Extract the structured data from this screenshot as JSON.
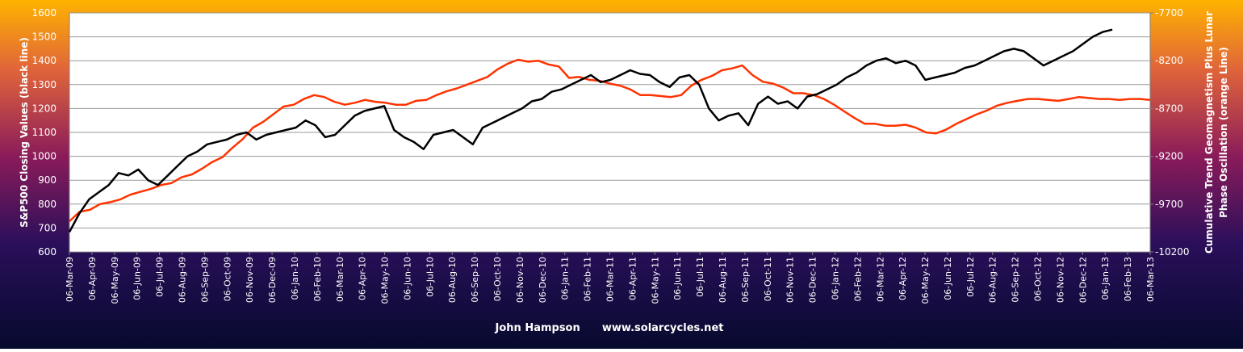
{
  "chart_data": {
    "type": "line",
    "x_tick_labels": [
      "06-Mar-09",
      "06-Apr-09",
      "06-May-09",
      "06-Jun-09",
      "06-Jul-09",
      "06-Aug-09",
      "06-Sep-09",
      "06-Oct-09",
      "06-Nov-09",
      "06-Dec-09",
      "06-Jan-10",
      "06-Feb-10",
      "06-Mar-10",
      "06-Apr-10",
      "06-May-10",
      "06-Jun-10",
      "06-Jul-10",
      "06-Aug-10",
      "06-Sep-10",
      "06-Oct-10",
      "06-Nov-10",
      "06-Dec-10",
      "06-Jan-11",
      "06-Feb-11",
      "06-Mar-11",
      "06-Apr-11",
      "06-May-11",
      "06-Jun-11",
      "06-Jul-11",
      "06-Aug-11",
      "06-Sep-11",
      "06-Oct-11",
      "06-Nov-11",
      "06-Dec-11",
      "06-Jan-12",
      "06-Feb-12",
      "06-Mar-12",
      "06-Apr-12",
      "06-May-12",
      "06-Jun-12",
      "06-Jul-12",
      "06-Aug-12",
      "06-Sep-12",
      "06-Oct-12",
      "06-Nov-12",
      "06-Dec-12",
      "06-Jan-13",
      "06-Feb-13",
      "06-Mar-13"
    ],
    "y_left": {
      "label": "S&P500 Closing  Values (black line)",
      "ylim": [
        600,
        1600
      ],
      "ticks": [
        "600",
        "700",
        "800",
        "900",
        "1000",
        "1100",
        "1200",
        "1300",
        "1400",
        "1500",
        "1600"
      ]
    },
    "y_right": {
      "label_line1": "Cumulative Trend Geomagnetism Plus Lunar",
      "label_line2": "Phase Oscillation  (orange Line)",
      "ylim": [
        -10200,
        -7700
      ],
      "ticks": [
        "-10200",
        "-9700",
        "-9200",
        "-8700",
        "-8200",
        "-7700"
      ]
    },
    "series": [
      {
        "color": "#000000",
        "axis": "left",
        "values": [
          683,
          760,
          820,
          850,
          880,
          930,
          920,
          945,
          900,
          880,
          920,
          960,
          1000,
          1020,
          1050,
          1060,
          1070,
          1090,
          1100,
          1070,
          1090,
          1100,
          1110,
          1120,
          1150,
          1130,
          1080,
          1090,
          1130,
          1170,
          1190,
          1200,
          1210,
          1110,
          1080,
          1060,
          1030,
          1090,
          1100,
          1110,
          1080,
          1050,
          1120,
          1140,
          1160,
          1180,
          1200,
          1230,
          1240,
          1270,
          1280,
          1300,
          1320,
          1340,
          1310,
          1320,
          1340,
          1360,
          1345,
          1340,
          1310,
          1290,
          1330,
          1340,
          1300,
          1200,
          1150,
          1170,
          1180,
          1130,
          1220,
          1250,
          1220,
          1230,
          1200,
          1250,
          1260,
          1280,
          1300,
          1330,
          1350,
          1380,
          1400,
          1410,
          1390,
          1400,
          1380,
          1320,
          1330,
          1340,
          1350,
          1370,
          1380,
          1400,
          1420,
          1440,
          1450,
          1440,
          1410,
          1380,
          1400,
          1420,
          1440,
          1470,
          1500,
          1520,
          1530
        ]
      },
      {
        "color": "#FF3300",
        "axis": "right",
        "values": [
          -9880,
          -9780,
          -9760,
          -9700,
          -9680,
          -9650,
          -9600,
          -9570,
          -9540,
          -9500,
          -9480,
          -9420,
          -9390,
          -9330,
          -9260,
          -9210,
          -9110,
          -9020,
          -8900,
          -8840,
          -8760,
          -8680,
          -8660,
          -8600,
          -8560,
          -8580,
          -8630,
          -8660,
          -8640,
          -8610,
          -8630,
          -8640,
          -8660,
          -8660,
          -8620,
          -8610,
          -8560,
          -8520,
          -8490,
          -8450,
          -8410,
          -8370,
          -8290,
          -8230,
          -8190,
          -8210,
          -8200,
          -8240,
          -8260,
          -8380,
          -8370,
          -8400,
          -8410,
          -8440,
          -8460,
          -8500,
          -8560,
          -8560,
          -8570,
          -8580,
          -8560,
          -8460,
          -8400,
          -8360,
          -8300,
          -8280,
          -8250,
          -8350,
          -8420,
          -8440,
          -8480,
          -8540,
          -8540,
          -8560,
          -8600,
          -8660,
          -8730,
          -8800,
          -8860,
          -8860,
          -8880,
          -8880,
          -8870,
          -8900,
          -8950,
          -8960,
          -8920,
          -8860,
          -8810,
          -8760,
          -8720,
          -8670,
          -8640,
          -8620,
          -8600,
          -8600,
          -8610,
          -8620,
          -8600,
          -8580,
          -8590,
          -8600,
          -8600,
          -8610,
          -8600,
          -8600,
          -8610
        ]
      }
    ],
    "footer": "John Hampson      www.solarcycles.net",
    "grid": true
  }
}
